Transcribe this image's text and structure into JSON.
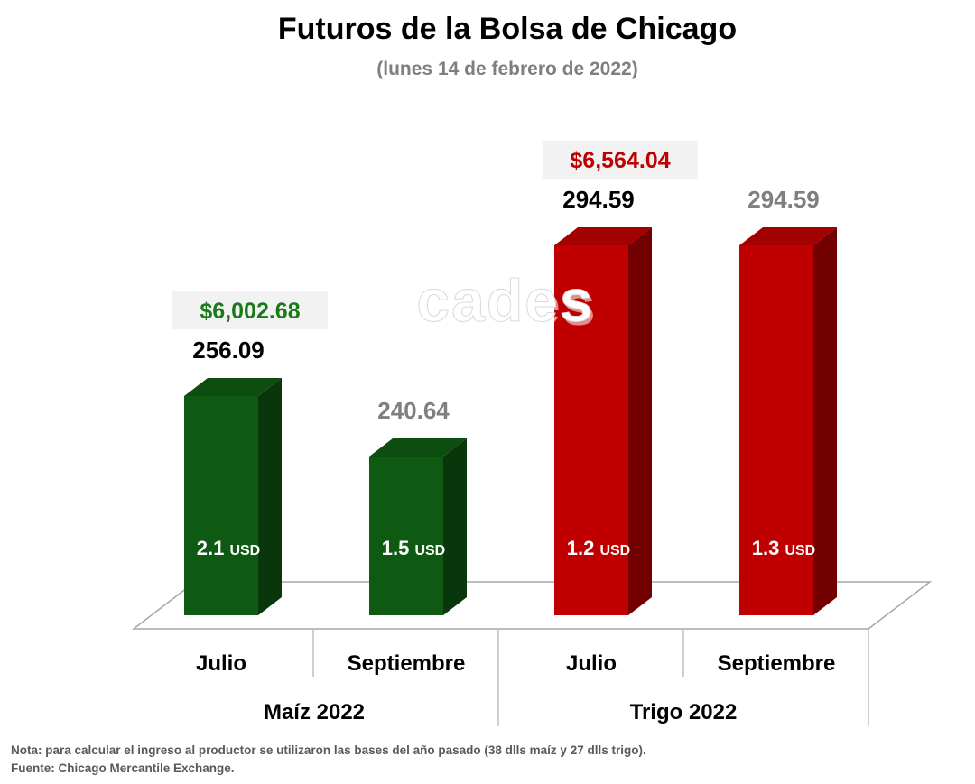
{
  "chart_data": {
    "type": "bar",
    "title": "Futuros de la Bolsa de Chicago",
    "subtitle": "(lunes 14 de febrero de 2022)",
    "groups": [
      {
        "label": "Maíz 2022",
        "color": "#0f5a12",
        "income_color": "#1a7a1a",
        "income": "$6,002.68",
        "bars": [
          {
            "month": "Julio",
            "value": 256.09,
            "value_label": "256.09",
            "value_color": "#000000",
            "usd_value": "2.1",
            "usd_unit": "USD"
          },
          {
            "month": "Septiembre",
            "value": 240.64,
            "value_label": "240.64",
            "value_color": "#7f7f7f",
            "usd_value": "1.5",
            "usd_unit": "USD"
          }
        ]
      },
      {
        "label": "Trigo 2022",
        "color": "#c00000",
        "income_color": "#c00000",
        "income": "$6,564.04",
        "bars": [
          {
            "month": "Julio",
            "value": 294.59,
            "value_label": "294.59",
            "value_color": "#000000",
            "usd_value": "1.2",
            "usd_unit": "USD"
          },
          {
            "month": "Septiembre",
            "value": 294.59,
            "value_label": "294.59",
            "value_color": "#7f7f7f",
            "usd_value": "1.3",
            "usd_unit": "USD"
          }
        ]
      }
    ]
  },
  "watermark": "cades",
  "notes": {
    "nota": "Nota: para calcular el ingreso al productor se utilizaron las bases del año pasado (38 dlls maíz y 27 dlls trigo).",
    "fuente": "Fuente: Chicago Mercantile Exchange."
  }
}
